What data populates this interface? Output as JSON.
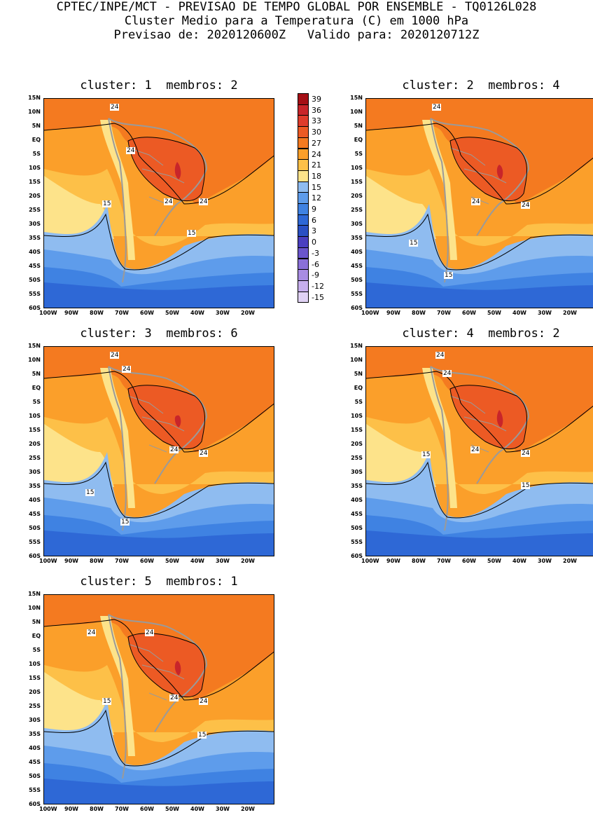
{
  "header": {
    "line1": "CPTEC/INPE/MCT - PREVISAO DE TEMPO GLOBAL POR ENSEMBLE - TQ0126L028",
    "line2": "Cluster Medio para a Temperatura (C) em 1000 hPa",
    "line3": "Previsao de: 2020120600Z   Valido para: 2020120712Z"
  },
  "panels": [
    {
      "title": "cluster: 1  membros: 2",
      "labels": [
        "24",
        "24",
        "24",
        "24",
        "15",
        "15"
      ]
    },
    {
      "title": "cluster: 2  membros: 4",
      "labels": [
        "24",
        "24",
        "24",
        "15",
        "15"
      ]
    },
    {
      "title": "cluster: 3  membros: 6",
      "labels": [
        "24",
        "24",
        "24",
        "24",
        "15",
        "15"
      ]
    },
    {
      "title": "cluster: 4  membros: 2",
      "labels": [
        "24",
        "24",
        "24",
        "24",
        "15",
        "15"
      ]
    },
    {
      "title": "cluster: 5  membros: 1",
      "labels": [
        "24",
        "24",
        "24",
        "24",
        "15",
        "15"
      ]
    }
  ],
  "lat_ticks": [
    "15N",
    "10N",
    "5N",
    "EQ",
    "5S",
    "10S",
    "15S",
    "20S",
    "25S",
    "30S",
    "35S",
    "40S",
    "45S",
    "50S",
    "55S",
    "60S"
  ],
  "lon_ticks": [
    "100W",
    "90W",
    "80W",
    "70W",
    "60W",
    "50W",
    "40W",
    "30W",
    "20W"
  ],
  "colorbar": {
    "labels": [
      "39",
      "36",
      "33",
      "30",
      "27",
      "24",
      "21",
      "18",
      "15",
      "12",
      "9",
      "6",
      "3",
      "0",
      "-3",
      "-6",
      "-9",
      "-12",
      "-15"
    ],
    "colors": [
      "#a50f15",
      "#c8252a",
      "#de3c2c",
      "#ec5a24",
      "#f47a20",
      "#fb9f2a",
      "#fdc048",
      "#fde38a",
      "#8fbcf0",
      "#5e9ceb",
      "#3f82e2",
      "#2e68d6",
      "#2a50c4",
      "#4a3fc0",
      "#6a55cc",
      "#8a70d8",
      "#a88ce2",
      "#c6aeec",
      "#e0d2f4"
    ]
  },
  "colors": {
    "hot": "#ec5a24",
    "warm": "#f47a20",
    "mild": "#fb9f2a",
    "pale": "#fdc048",
    "cream": "#fde38a",
    "cool1": "#8fbcf0",
    "cool2": "#5e9ceb",
    "cool3": "#3f82e2",
    "cool4": "#2e68d6",
    "dark": "#c8252a",
    "coast": "#9a9a9a"
  }
}
